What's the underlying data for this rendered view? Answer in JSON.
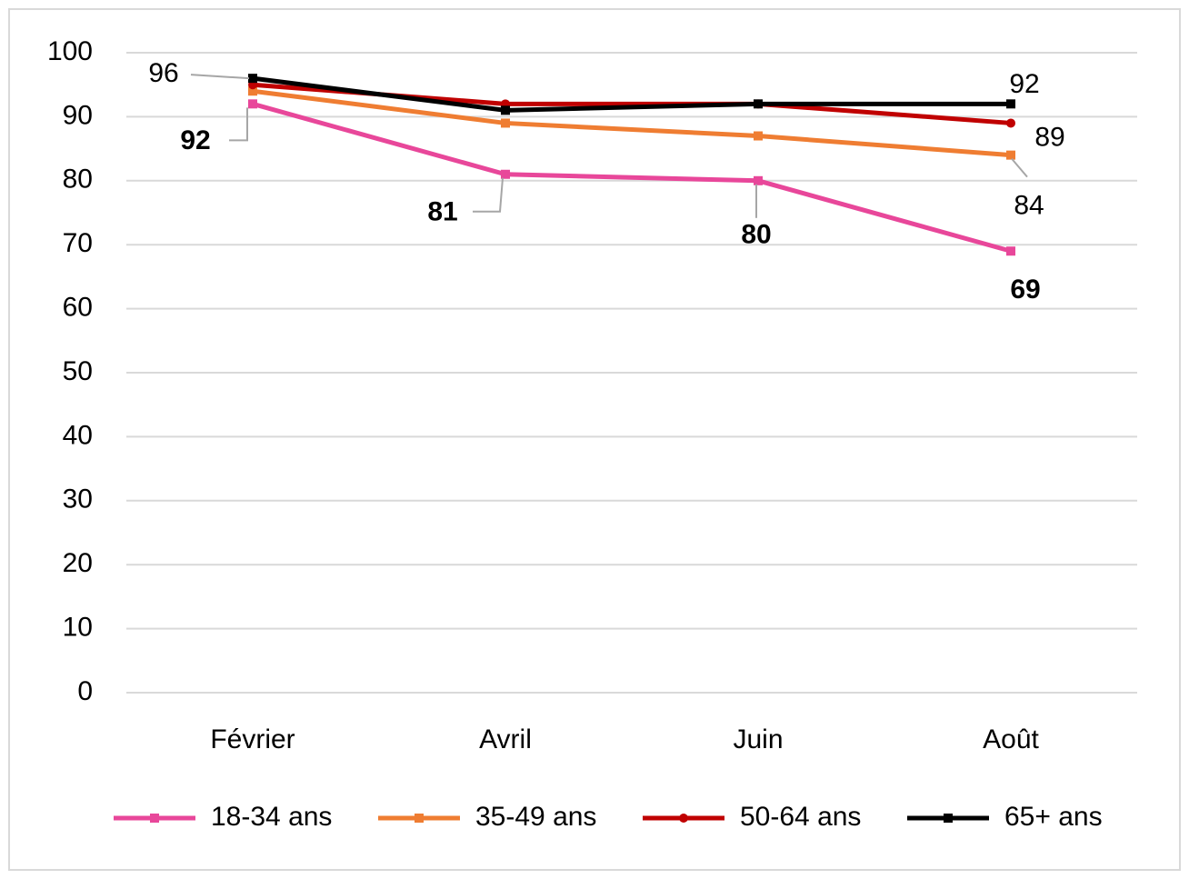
{
  "chart_data": {
    "type": "line",
    "categories": [
      "Février",
      "Avril",
      "Juin",
      "Août"
    ],
    "series": [
      {
        "name": "18-34 ans",
        "color": "#e8479a",
        "marker": "square",
        "values": [
          92,
          81,
          80,
          69
        ],
        "data_labels": [
          0,
          1,
          2,
          3
        ],
        "label_bold": true
      },
      {
        "name": "35-49 ans",
        "color": "#ef7d32",
        "marker": "square",
        "values": [
          94,
          89,
          87,
          84
        ],
        "data_labels": [
          3
        ],
        "label_bold": false
      },
      {
        "name": "50-64 ans",
        "color": "#c00000",
        "marker": "circle",
        "values": [
          95,
          92,
          92,
          89
        ],
        "data_labels": [
          3
        ],
        "label_bold": false
      },
      {
        "name": "65+ ans",
        "color": "#000000",
        "marker": "square",
        "values": [
          96,
          91,
          92,
          92
        ],
        "data_labels": [
          0,
          3
        ],
        "label_bold": false
      }
    ],
    "ylim": [
      0,
      100
    ],
    "yticks": [
      0,
      10,
      20,
      30,
      40,
      50,
      60,
      70,
      80,
      90,
      100
    ],
    "grid": true,
    "legend": "bottom"
  }
}
